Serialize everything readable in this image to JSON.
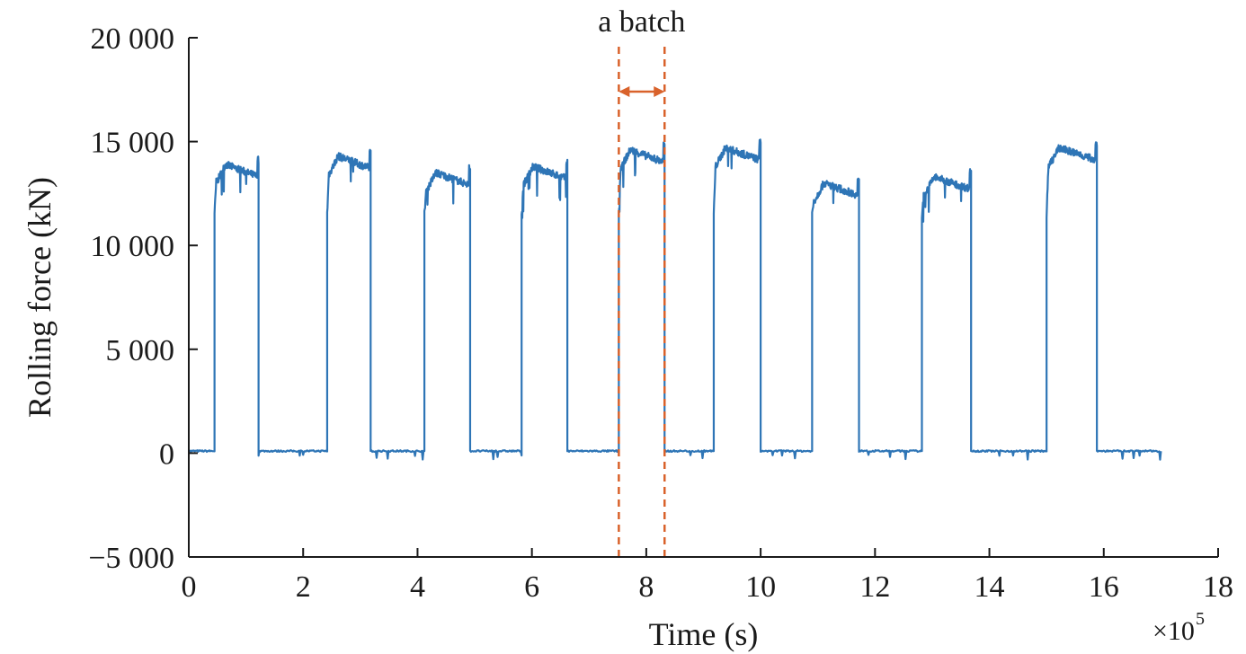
{
  "chart_data": {
    "type": "line",
    "xlabel": "Time (s)",
    "ylabel": "Rolling force (kN)",
    "x_multiplier_base": "×10",
    "x_multiplier_exp": "5",
    "xlim": [
      0,
      18
    ],
    "ylim": [
      -5000,
      20000
    ],
    "xticks": [
      0,
      2,
      4,
      6,
      8,
      10,
      12,
      14,
      16,
      18
    ],
    "xtick_labels": [
      "0",
      "2",
      "4",
      "6",
      "8",
      "10",
      "12",
      "14",
      "16",
      "18"
    ],
    "yticks": [
      -5000,
      0,
      5000,
      10000,
      15000,
      20000
    ],
    "ytick_labels": [
      "−5 000",
      "0",
      "5 000",
      "10 000",
      "15 000",
      "20 000"
    ],
    "grid": false,
    "series_color": "#2e75b6",
    "annotation_color": "#d9622b",
    "batches": [
      {
        "start": 0.45,
        "end": 1.22,
        "level": 13700
      },
      {
        "start": 2.42,
        "end": 3.18,
        "level": 14100
      },
      {
        "start": 4.12,
        "end": 4.92,
        "level": 13300
      },
      {
        "start": 5.82,
        "end": 6.62,
        "level": 13600
      },
      {
        "start": 7.52,
        "end": 8.32,
        "level": 14400
      },
      {
        "start": 9.18,
        "end": 10.0,
        "level": 14500
      },
      {
        "start": 10.9,
        "end": 11.72,
        "level": 12800
      },
      {
        "start": 12.82,
        "end": 13.68,
        "level": 13100
      },
      {
        "start": 15.0,
        "end": 15.88,
        "level": 14500
      }
    ],
    "series_end": 17.0,
    "baseline": 100,
    "annotation": {
      "text": "a batch",
      "x_start": 7.52,
      "x_end": 8.32
    }
  }
}
